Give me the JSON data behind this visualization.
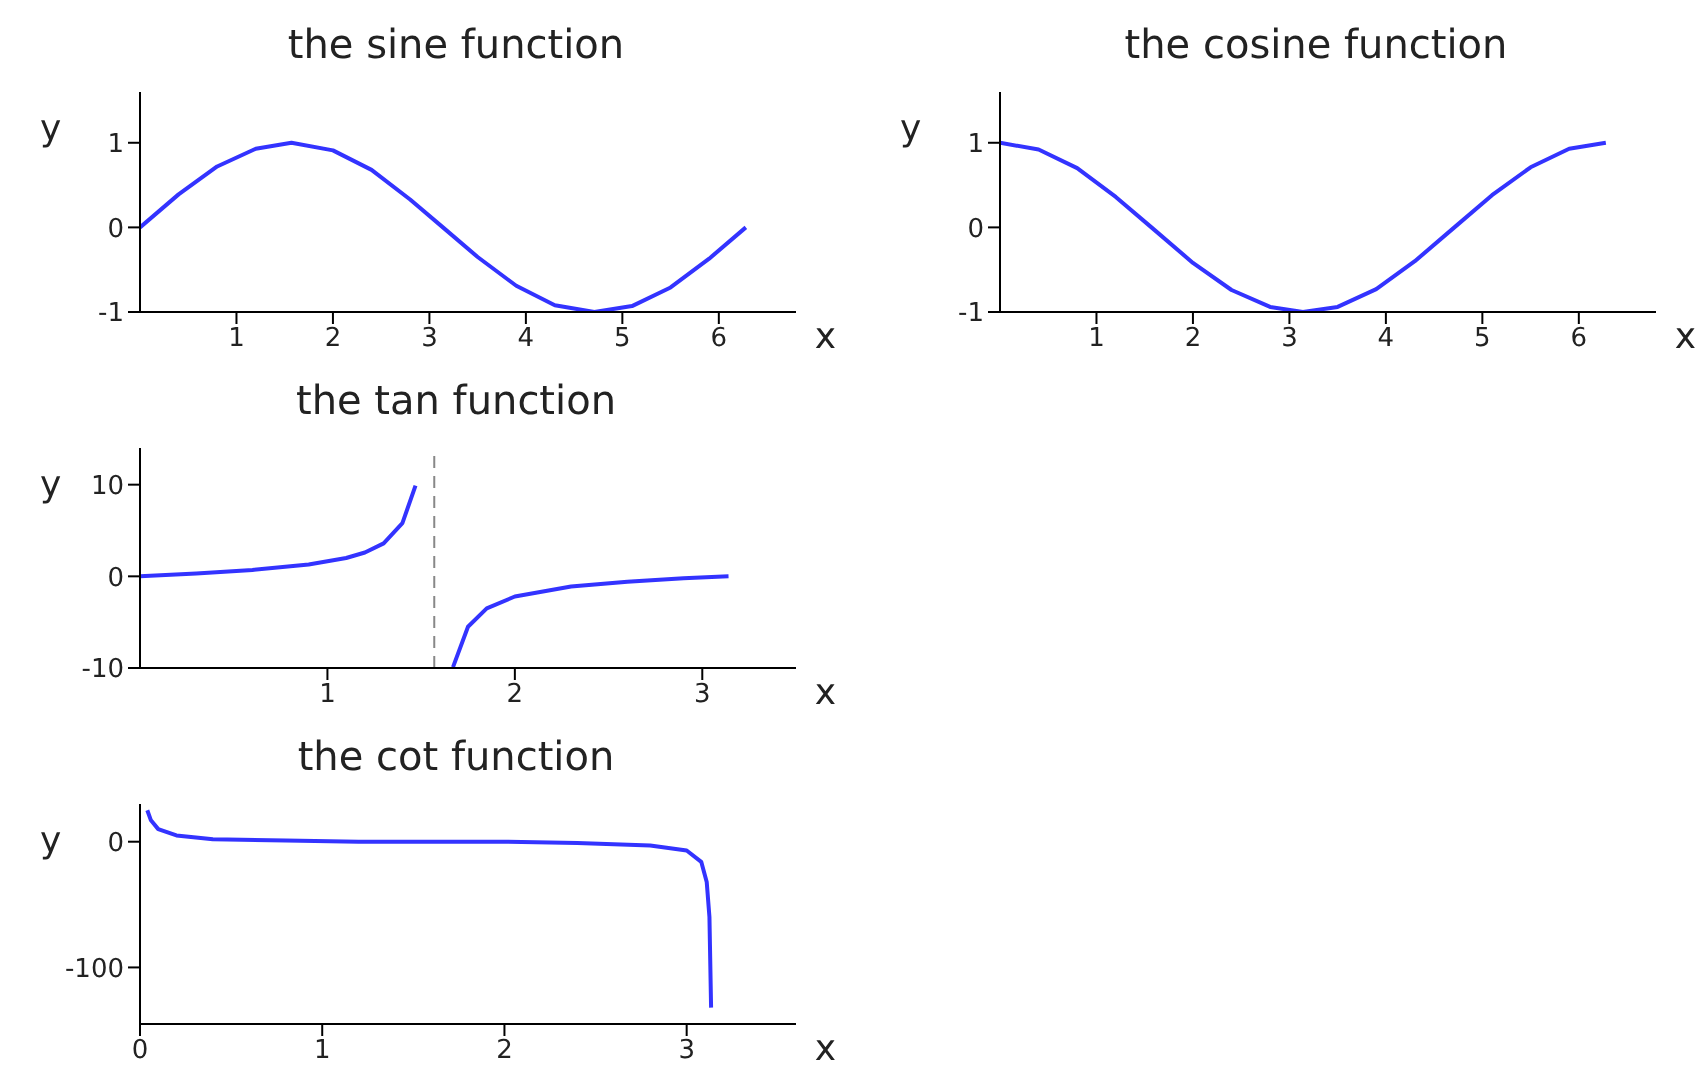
{
  "chart_data": [
    {
      "type": "line",
      "title": "the sine function",
      "xlabel": "x",
      "ylabel": "y",
      "xlim": [
        0,
        6.8
      ],
      "ylim": [
        -1,
        1.6
      ],
      "xticks": [
        1,
        2,
        3,
        4,
        5,
        6
      ],
      "yticks": [
        -1,
        0,
        1
      ],
      "grid": false,
      "legend": false,
      "marker": "none",
      "line_style": "solid",
      "series": [
        {
          "color": "#3333ff",
          "x": [
            0,
            0.4,
            0.8,
            1.2,
            1.57,
            2.0,
            2.4,
            2.8,
            3.14,
            3.5,
            3.9,
            4.3,
            4.71,
            5.1,
            5.5,
            5.9,
            6.28
          ],
          "values": [
            0,
            0.39,
            0.72,
            0.93,
            1,
            0.91,
            0.68,
            0.33,
            0,
            -0.35,
            -0.69,
            -0.92,
            -1,
            -0.93,
            -0.71,
            -0.37,
            0
          ]
        }
      ]
    },
    {
      "type": "line",
      "title": "the cosine function",
      "xlabel": "x",
      "ylabel": "y",
      "xlim": [
        0,
        6.8
      ],
      "ylim": [
        -1,
        1.6
      ],
      "xticks": [
        1,
        2,
        3,
        4,
        5,
        6
      ],
      "yticks": [
        -1,
        0,
        1
      ],
      "grid": false,
      "legend": false,
      "marker": "none",
      "line_style": "solid",
      "series": [
        {
          "color": "#3333ff",
          "x": [
            0,
            0.4,
            0.8,
            1.2,
            1.57,
            2.0,
            2.4,
            2.8,
            3.14,
            3.5,
            3.9,
            4.3,
            4.71,
            5.1,
            5.5,
            5.9,
            6.28
          ],
          "values": [
            1,
            0.92,
            0.7,
            0.36,
            0,
            -0.42,
            -0.74,
            -0.94,
            -1,
            -0.94,
            -0.73,
            -0.4,
            0,
            0.38,
            0.71,
            0.93,
            1
          ]
        }
      ]
    },
    {
      "type": "line",
      "title": "the tan function",
      "xlabel": "x",
      "ylabel": "y",
      "xlim": [
        0,
        3.5
      ],
      "ylim": [
        -10,
        14
      ],
      "xticks": [
        1,
        2,
        3
      ],
      "yticks": [
        -10,
        0,
        10
      ],
      "grid": false,
      "legend": false,
      "marker": "none",
      "line_style": "solid",
      "ref_lines": [
        {
          "axis": "x",
          "value": 1.57,
          "color": "#888888",
          "line_style": "dashed"
        }
      ],
      "series": [
        {
          "color": "#3333ff",
          "x": [
            0,
            0.3,
            0.6,
            0.9,
            1.1,
            1.2,
            1.3,
            1.4,
            1.47,
            1.57,
            1.67,
            1.75,
            1.85,
            2.0,
            2.3,
            2.6,
            2.9,
            3.14
          ],
          "values": [
            0,
            0.3,
            0.7,
            1.3,
            2,
            2.6,
            3.6,
            5.8,
            9.9,
            null,
            -9.9,
            -5.5,
            -3.5,
            -2.2,
            -1.1,
            -0.6,
            -0.2,
            0
          ]
        }
      ]
    },
    {
      "type": "line",
      "title": "the cot function",
      "xlabel": "x",
      "ylabel": "y",
      "xlim": [
        0,
        3.6
      ],
      "ylim": [
        -145,
        30
      ],
      "xticks": [
        0,
        1,
        2,
        3
      ],
      "yticks": [
        -100,
        0
      ],
      "grid": false,
      "legend": false,
      "marker": "none",
      "line_style": "solid",
      "series": [
        {
          "color": "#3333ff",
          "x": [
            0.04,
            0.06,
            0.1,
            0.2,
            0.4,
            0.8,
            1.2,
            1.6,
            2.0,
            2.4,
            2.8,
            3.0,
            3.08,
            3.11,
            3.125,
            3.134
          ],
          "values": [
            25,
            17,
            10,
            5,
            2,
            1,
            0,
            0,
            0,
            -1,
            -3,
            -7,
            -16,
            -32,
            -60,
            -132
          ]
        }
      ]
    }
  ]
}
